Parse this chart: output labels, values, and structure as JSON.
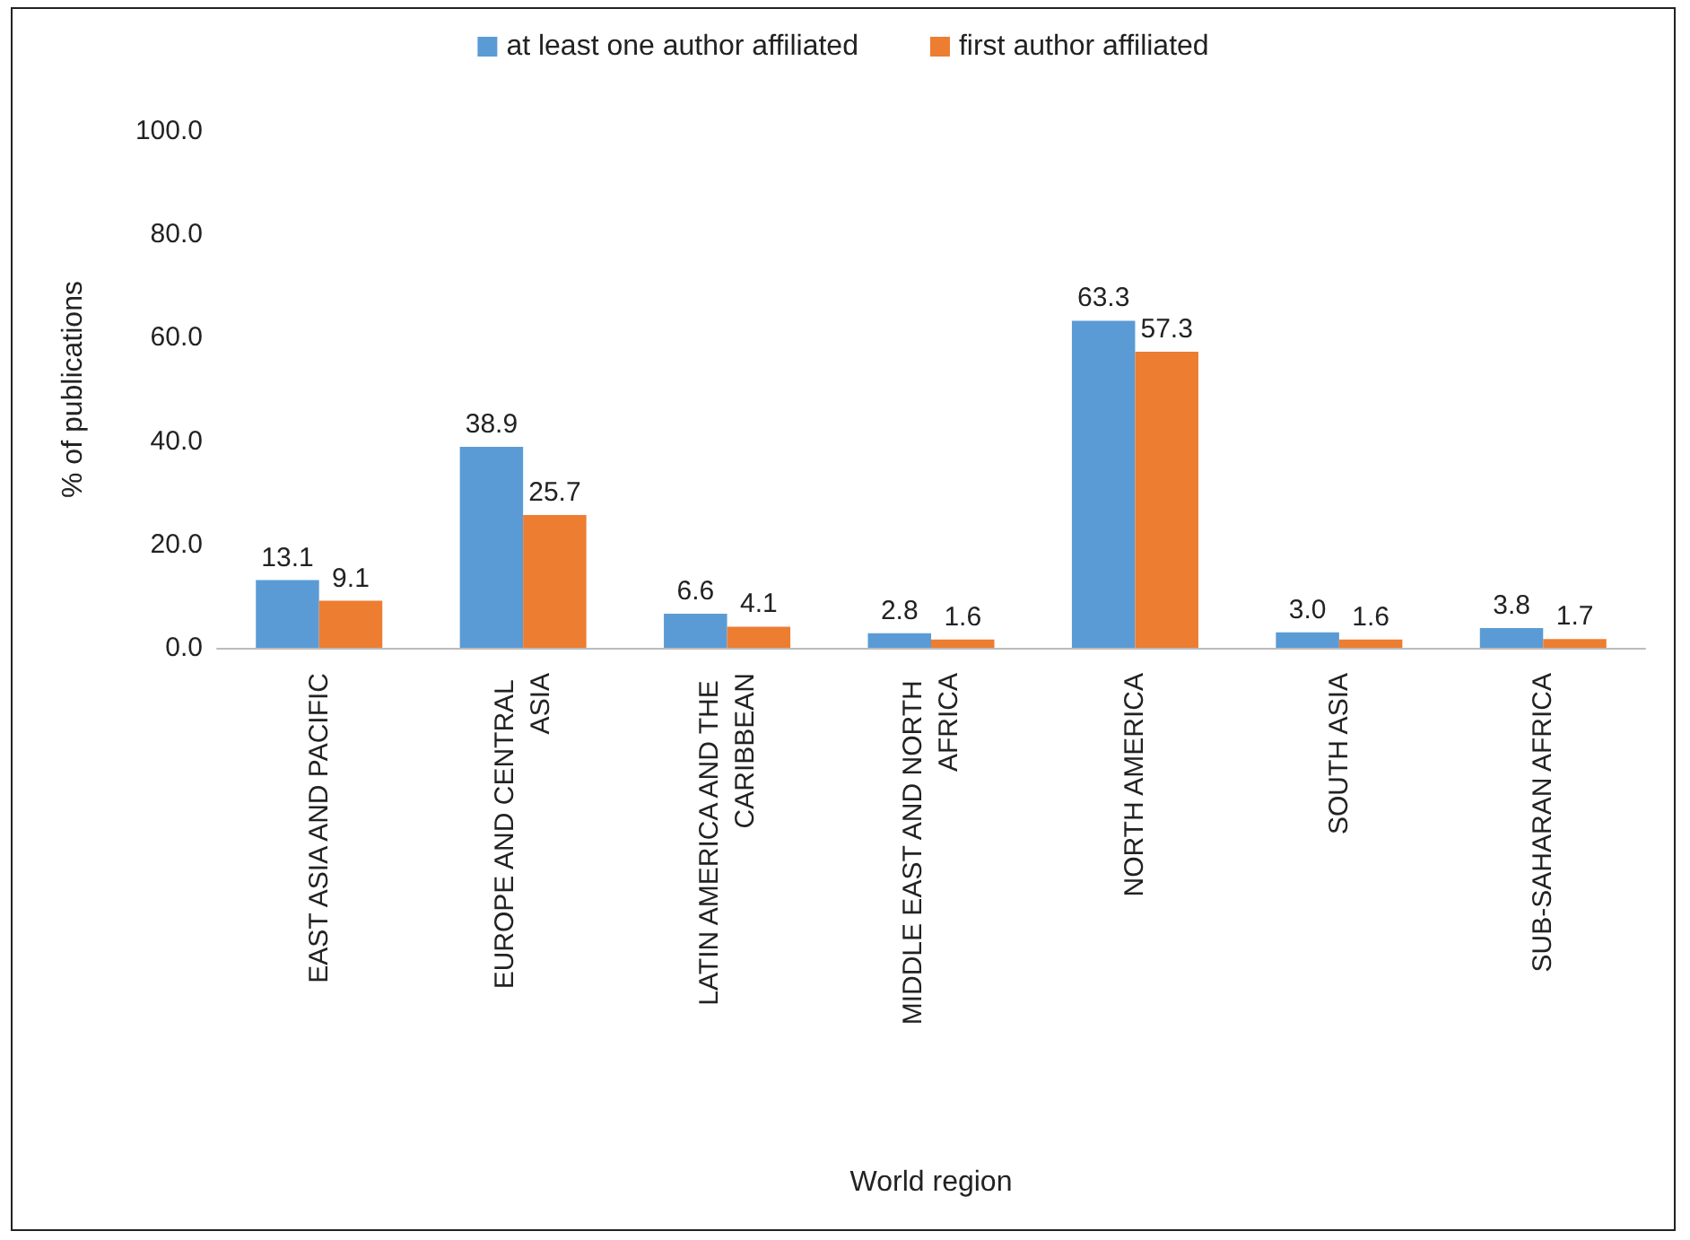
{
  "chart_data": {
    "type": "bar",
    "xlabel": "World region",
    "ylabel": "% of publications",
    "categories": [
      "EAST ASIA AND PACIFIC",
      "EUROPE AND CENTRAL ASIA",
      "LATIN AMERICA AND THE CARIBBEAN",
      "MIDDLE EAST AND NORTH AFRICA",
      "NORTH AMERICA",
      "SOUTH ASIA",
      "SUB-SAHARAN AFRICA"
    ],
    "series": [
      {
        "name": "at least one author affiliated",
        "color": "#5b9bd5",
        "values": [
          13.1,
          38.9,
          6.6,
          2.8,
          63.3,
          3.0,
          3.8
        ],
        "value_labels": [
          "13.1",
          "38.9",
          "6.6",
          "2.8",
          "63.3",
          "3.0",
          "3.8"
        ]
      },
      {
        "name": "first author affiliated",
        "color": "#ed7d31",
        "values": [
          9.1,
          25.7,
          4.1,
          1.6,
          57.3,
          1.6,
          1.7
        ],
        "value_labels": [
          "9.1",
          "25.7",
          "4.1",
          "1.6",
          "57.3",
          "1.6",
          "1.7"
        ]
      }
    ],
    "ylim": [
      0,
      100
    ],
    "yticks": [
      {
        "value": 0,
        "label": "0.0"
      },
      {
        "value": 20,
        "label": "20.0"
      },
      {
        "value": 40,
        "label": "40.0"
      },
      {
        "value": 60,
        "label": "60.0"
      },
      {
        "value": 80,
        "label": "80.0"
      },
      {
        "value": 100,
        "label": "100.0"
      }
    ],
    "grid": false,
    "legend": "top"
  }
}
